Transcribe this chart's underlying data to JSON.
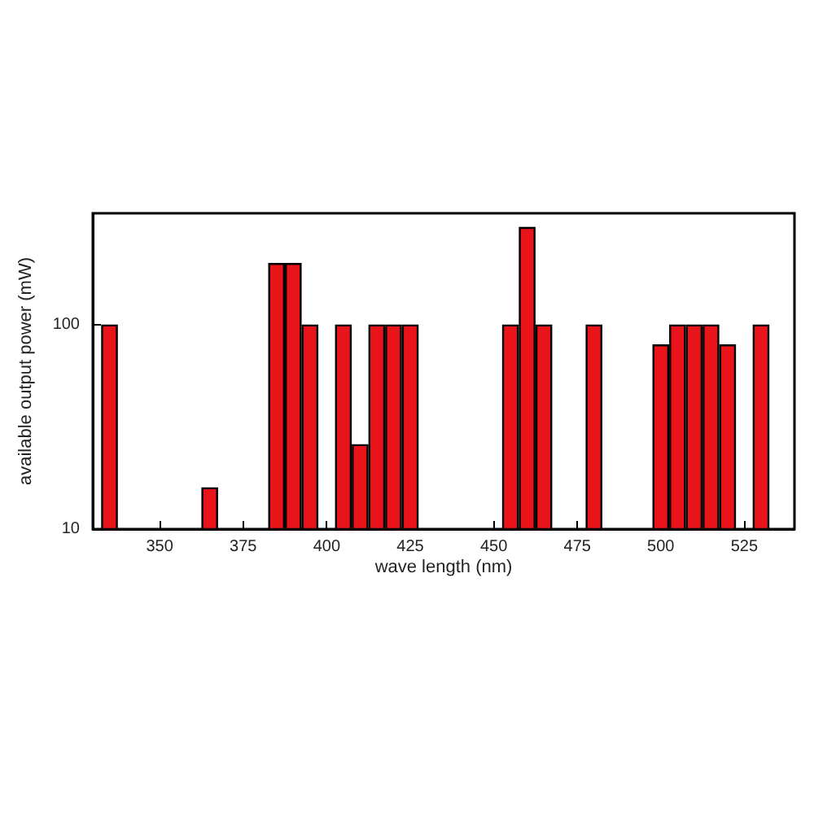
{
  "chart_data": {
    "type": "bar",
    "xlabel": "wave length (nm)",
    "ylabel": "available output power (mW)",
    "x": [
      335,
      365,
      385,
      390,
      395,
      405,
      410,
      415,
      420,
      425,
      455,
      460,
      465,
      480,
      500,
      505,
      510,
      515,
      520,
      530
    ],
    "values": [
      100,
      16,
      200,
      200,
      100,
      100,
      26,
      100,
      100,
      100,
      100,
      300,
      100,
      100,
      80,
      100,
      100,
      100,
      80,
      100
    ],
    "color": "#e8141a",
    "log": "y",
    "xlim": [
      330,
      540
    ],
    "xticks": [
      350,
      375,
      400,
      425,
      450,
      475,
      500,
      525
    ],
    "ylim": [
      10,
      350
    ],
    "yticks": [
      10,
      100
    ]
  }
}
